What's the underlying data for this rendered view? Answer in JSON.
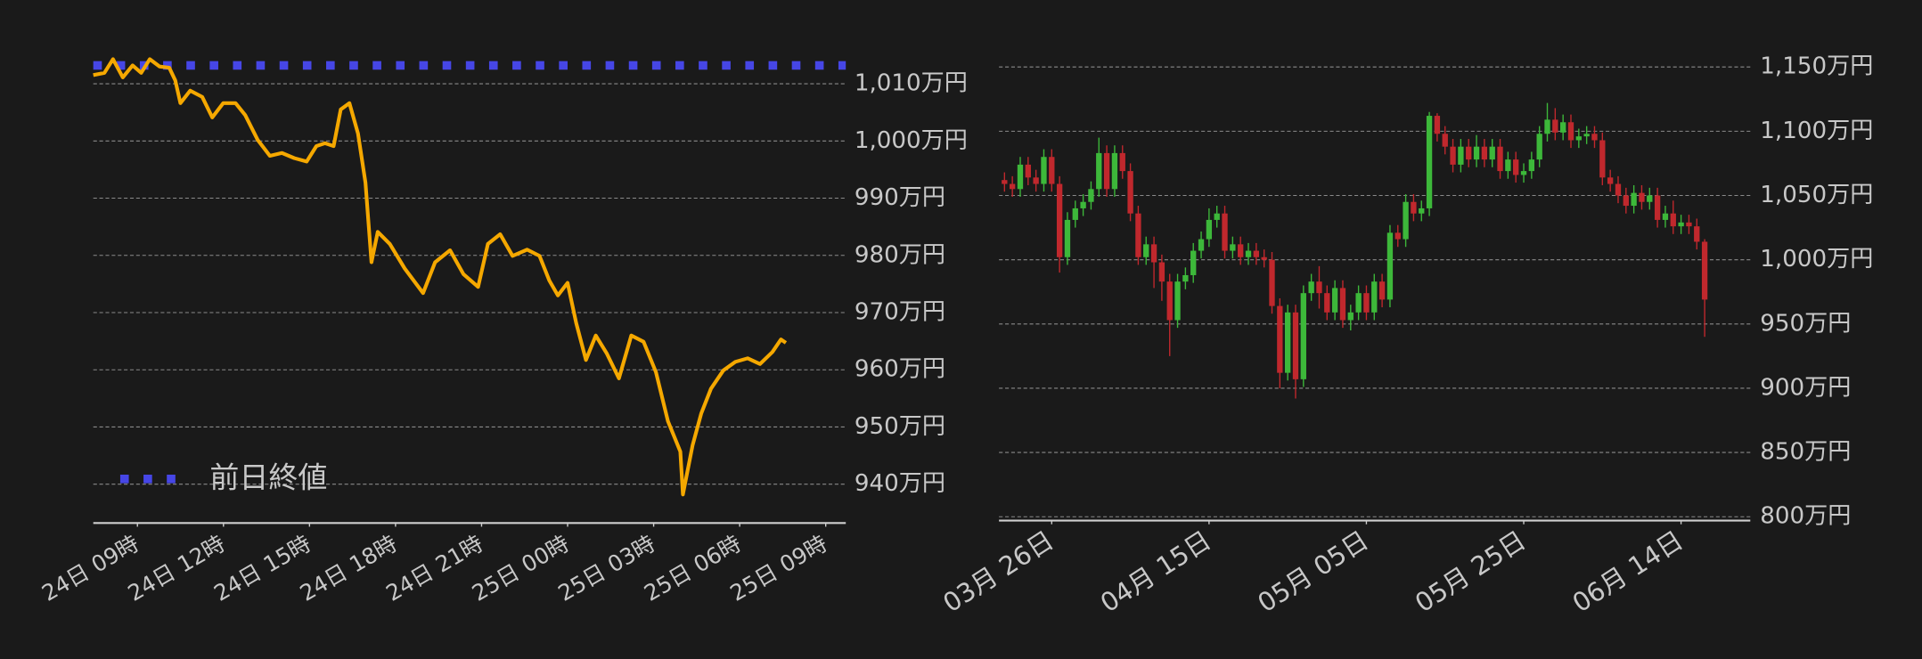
{
  "chart_data": [
    {
      "type": "line",
      "color": "#f5a800",
      "x": [
        -1.54,
        -1.15,
        -0.85,
        -0.51,
        -0.17,
        0.13,
        0.43,
        0.77,
        1.11,
        1.32,
        1.5,
        1.84,
        2.26,
        2.61,
        2.99,
        3.42,
        3.76,
        4.19,
        4.62,
        5.04,
        5.47,
        5.9,
        6.24,
        6.54,
        6.84,
        7.09,
        7.39,
        7.69,
        7.95,
        8.16,
        8.38,
        8.8,
        9.32,
        9.96,
        10.38,
        10.9,
        11.37,
        11.88,
        12.22,
        12.65,
        13.08,
        13.59,
        14.02,
        14.36,
        14.66,
        15.0,
        15.3,
        15.64,
        15.98,
        16.37,
        16.79,
        17.22,
        17.65,
        18.08,
        18.5,
        18.93,
        19.02,
        19.36,
        19.66,
        20.0,
        20.43,
        20.85,
        21.28,
        21.71,
        22.14,
        22.44,
        22.61
      ],
      "values": [
        1011.5,
        1011.9,
        1014.3,
        1011.1,
        1013.2,
        1011.9,
        1014.3,
        1013.0,
        1012.8,
        1010.6,
        1006.6,
        1008.8,
        1007.7,
        1004.1,
        1006.6,
        1006.6,
        1004.5,
        1000.2,
        997.4,
        997.9,
        997.0,
        996.4,
        999.1,
        999.6,
        999.1,
        1005.5,
        1006.6,
        1001.3,
        992.7,
        978.8,
        984.1,
        982.0,
        977.7,
        973.4,
        978.8,
        980.9,
        976.7,
        974.5,
        982.0,
        983.7,
        979.9,
        981.0,
        979.9,
        975.6,
        973.0,
        975.2,
        968.2,
        961.7,
        966.0,
        962.8,
        958.5,
        966.0,
        964.9,
        959.6,
        951.0,
        945.7,
        938.2,
        946.8,
        952.4,
        956.7,
        959.9,
        961.4,
        962.0,
        961.0,
        963.1,
        965.3,
        964.7
      ],
      "reference_line": {
        "name": "前日終値",
        "value": 1013.2,
        "color": "#4646e6"
      },
      "legend": "lower left",
      "grid": true,
      "xlim": [
        -1.54,
        24.7
      ],
      "xticks": [
        {
          "value": 0,
          "label": "24日 09時"
        },
        {
          "value": 3,
          "label": "24日 12時"
        },
        {
          "value": 6,
          "label": "24日 15時"
        },
        {
          "value": 9,
          "label": "24日 18時"
        },
        {
          "value": 12,
          "label": "24日 21時"
        },
        {
          "value": 15,
          "label": "25日 00時"
        },
        {
          "value": 18,
          "label": "25日 03時"
        },
        {
          "value": 21,
          "label": "25日 06時"
        },
        {
          "value": 24,
          "label": "25日 09時"
        }
      ],
      "ylim": [
        933,
        1015
      ],
      "yticks": [
        {
          "value": 940,
          "label": "940万円"
        },
        {
          "value": 950,
          "label": "950万円"
        },
        {
          "value": 960,
          "label": "960万円"
        },
        {
          "value": 970,
          "label": "970万円"
        },
        {
          "value": 980,
          "label": "980万円"
        },
        {
          "value": 990,
          "label": "990万円"
        },
        {
          "value": 1000,
          "label": "1,000万円"
        },
        {
          "value": 1010,
          "label": "1,010万円"
        }
      ]
    },
    {
      "type": "candlestick",
      "up_color": "#3db83a",
      "down_color": "#c0282d",
      "x": [
        -6,
        -5,
        -4,
        -3,
        -2,
        -1,
        0,
        1,
        2,
        3,
        4,
        5,
        6,
        7,
        8,
        9,
        10,
        11,
        12,
        13,
        14,
        15,
        16,
        17,
        18,
        19,
        20,
        21,
        22,
        23,
        24,
        25,
        26,
        27,
        28,
        29,
        30,
        31,
        32,
        33,
        34,
        35,
        36,
        37,
        38,
        39,
        40,
        41,
        42,
        43,
        44,
        45,
        46,
        47,
        48,
        49,
        50,
        51,
        52,
        53,
        54,
        55,
        56,
        57,
        58,
        59,
        60,
        61,
        62,
        63,
        64,
        65,
        66,
        67,
        68,
        69,
        70,
        71,
        72,
        73,
        74,
        75,
        76,
        77,
        78,
        79,
        80,
        81,
        82,
        83
      ],
      "open": [
        1062,
        1059,
        1055,
        1074,
        1064,
        1059,
        1080,
        1059,
        1002,
        1031,
        1040,
        1045,
        1055,
        1083,
        1055,
        1083,
        1069,
        1036,
        1002,
        1012,
        998,
        983,
        953,
        983,
        988,
        1007,
        1016,
        1031,
        1036,
        1007,
        1012,
        1002,
        1007,
        1002,
        1000,
        964,
        912,
        959,
        907,
        974,
        983,
        974,
        959,
        978,
        953,
        959,
        974,
        959,
        983,
        969,
        1021,
        1016,
        1045,
        1036,
        1040,
        1112,
        1098,
        1088,
        1074,
        1088,
        1078,
        1088,
        1078,
        1088,
        1069,
        1078,
        1066,
        1069,
        1078,
        1098,
        1109,
        1099,
        1107,
        1093,
        1096,
        1098,
        1093,
        1064,
        1059,
        1050,
        1042,
        1052,
        1045,
        1050,
        1031,
        1036,
        1026,
        1029,
        1026,
        1014
      ],
      "high": [
        1068,
        1065,
        1080,
        1080,
        1070,
        1086,
        1086,
        1065,
        1037,
        1046,
        1051,
        1061,
        1095,
        1089,
        1089,
        1089,
        1075,
        1042,
        1018,
        1018,
        1004,
        989,
        989,
        994,
        1013,
        1022,
        1040,
        1042,
        1042,
        1018,
        1018,
        1013,
        1013,
        1008,
        1006,
        970,
        965,
        965,
        980,
        989,
        995,
        980,
        984,
        984,
        965,
        980,
        980,
        989,
        989,
        1027,
        1027,
        1051,
        1051,
        1046,
        1115,
        1114,
        1104,
        1094,
        1094,
        1094,
        1097,
        1094,
        1094,
        1094,
        1084,
        1084,
        1075,
        1084,
        1104,
        1122,
        1118,
        1113,
        1113,
        1102,
        1104,
        1104,
        1099,
        1070,
        1065,
        1056,
        1058,
        1058,
        1056,
        1056,
        1042,
        1046,
        1035,
        1035,
        1032,
        1016
      ],
      "low": [
        1053,
        1049,
        1049,
        1058,
        1053,
        1053,
        1053,
        990,
        996,
        1025,
        1034,
        1039,
        1049,
        1049,
        1049,
        1063,
        1030,
        996,
        996,
        978,
        968,
        925,
        947,
        977,
        982,
        1001,
        1010,
        1025,
        1001,
        1001,
        996,
        996,
        996,
        994,
        958,
        900,
        906,
        892,
        901,
        968,
        962,
        953,
        953,
        947,
        945,
        953,
        953,
        953,
        963,
        963,
        1010,
        1010,
        1030,
        1030,
        1034,
        1092,
        1082,
        1068,
        1068,
        1072,
        1072,
        1072,
        1072,
        1063,
        1063,
        1060,
        1060,
        1063,
        1072,
        1092,
        1093,
        1093,
        1087,
        1087,
        1090,
        1087,
        1058,
        1053,
        1044,
        1036,
        1036,
        1039,
        1039,
        1025,
        1025,
        1020,
        1020,
        1020,
        1008,
        940
      ],
      "close": [
        1059,
        1055,
        1074,
        1064,
        1059,
        1080,
        1059,
        1002,
        1031,
        1040,
        1045,
        1055,
        1083,
        1055,
        1083,
        1069,
        1036,
        1002,
        1012,
        998,
        983,
        953,
        983,
        988,
        1007,
        1016,
        1031,
        1036,
        1007,
        1012,
        1002,
        1007,
        1002,
        1000,
        964,
        912,
        959,
        907,
        974,
        983,
        974,
        959,
        978,
        953,
        959,
        974,
        959,
        983,
        969,
        1021,
        1016,
        1045,
        1036,
        1040,
        1112,
        1098,
        1088,
        1074,
        1088,
        1078,
        1088,
        1078,
        1088,
        1069,
        1078,
        1066,
        1069,
        1078,
        1098,
        1109,
        1099,
        1107,
        1093,
        1096,
        1098,
        1093,
        1064,
        1059,
        1050,
        1042,
        1052,
        1045,
        1050,
        1031,
        1036,
        1026,
        1029,
        1026,
        1014,
        969
      ],
      "grid": true,
      "xlim": [
        -6.7,
        88.8
      ],
      "xticks": [
        {
          "value": 0,
          "label": "03月 26日"
        },
        {
          "value": 20,
          "label": "04月 15日"
        },
        {
          "value": 40,
          "label": "05月 05日"
        },
        {
          "value": 60,
          "label": "05月 25日"
        },
        {
          "value": 80,
          "label": "06月 14日"
        }
      ],
      "ylim": [
        797,
        1164
      ],
      "yticks": [
        {
          "value": 800,
          "label": "800万円"
        },
        {
          "value": 850,
          "label": "850万円"
        },
        {
          "value": 900,
          "label": "900万円"
        },
        {
          "value": 950,
          "label": "950万円"
        },
        {
          "value": 1000,
          "label": "1,000万円"
        },
        {
          "value": 1050,
          "label": "1,050万円"
        },
        {
          "value": 1100,
          "label": "1,100万円"
        },
        {
          "value": 1150,
          "label": "1,150万円"
        }
      ]
    }
  ]
}
